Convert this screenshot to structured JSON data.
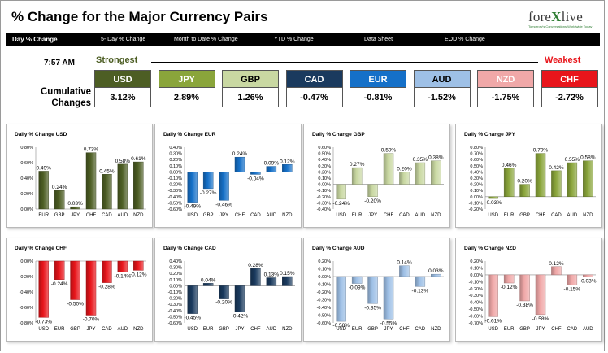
{
  "header": {
    "title": "% Change for the Major Currency Pairs",
    "logo_text_1": "fore",
    "logo_text_x": "X",
    "logo_text_2": "live",
    "logo_tagline": "Tomorrow's Conversations Worldwide Today"
  },
  "nav": {
    "items": [
      {
        "label": "Day % Change"
      },
      {
        "label": "5- Day % Change"
      },
      {
        "label": "Month to Date % Change"
      },
      {
        "label": "YTD % Change"
      },
      {
        "label": "Data Sheet"
      },
      {
        "label": "EOD % Change"
      }
    ]
  },
  "time": "7:57 AM",
  "strongest_label": "Strongest",
  "weakest_label": "Weakest",
  "cumulative_label_1": "Cumulative",
  "cumulative_label_2": "Changes",
  "rankings": [
    {
      "currency": "USD",
      "value": "3.12%",
      "color": "#4d5e24",
      "text_color": "#ffffff"
    },
    {
      "currency": "JPY",
      "value": "2.89%",
      "color": "#8aa53b",
      "text_color": "#ffffff"
    },
    {
      "currency": "GBP",
      "value": "1.26%",
      "color": "#c9d8a2",
      "text_color": "#000000"
    },
    {
      "currency": "CAD",
      "value": "-0.47%",
      "color": "#1a3a5e",
      "text_color": "#ffffff"
    },
    {
      "currency": "EUR",
      "value": "-0.81%",
      "color": "#1570c8",
      "text_color": "#ffffff"
    },
    {
      "currency": "AUD",
      "value": "-1.52%",
      "color": "#9ec0e6",
      "text_color": "#000000"
    },
    {
      "currency": "NZD",
      "value": "-1.75%",
      "color": "#f0a8a8",
      "text_color": "#ffffff"
    },
    {
      "currency": "CHF",
      "value": "-2.72%",
      "color": "#e8151b",
      "text_color": "#ffffff"
    }
  ],
  "chart_data": [
    {
      "type": "bar",
      "title": "Daily % Change USD",
      "categories": [
        "EUR",
        "GBP",
        "JPY",
        "CHF",
        "CAD",
        "AUD",
        "NZD"
      ],
      "values": [
        0.49,
        0.24,
        0.03,
        0.73,
        0.45,
        0.58,
        0.61
      ],
      "labels": [
        "0.49%",
        "0.24%",
        "0.03%",
        "0.73%",
        "0.45%",
        "0.58%",
        "0.61%"
      ],
      "ylim": [
        0,
        0.8
      ],
      "yticks": [
        "0.00%",
        "0.20%",
        "0.40%",
        "0.60%",
        "0.80%"
      ],
      "color": "#4d5e24"
    },
    {
      "type": "bar",
      "title": "Daily % Change EUR",
      "categories": [
        "USD",
        "GBP",
        "JPY",
        "CHF",
        "CAD",
        "AUD",
        "NZD"
      ],
      "values": [
        -0.49,
        -0.27,
        -0.46,
        0.24,
        -0.04,
        0.09,
        0.12
      ],
      "labels": [
        "-0.49%",
        "-0.27%",
        "-0.46%",
        "0.24%",
        "-0.04%",
        "0.09%",
        "0.12%"
      ],
      "ylim": [
        -0.6,
        0.4
      ],
      "yticks": [
        "-0.60%",
        "-0.50%",
        "-0.40%",
        "-0.30%",
        "-0.20%",
        "-0.10%",
        "0.00%",
        "0.10%",
        "0.20%",
        "0.30%",
        "0.40%"
      ],
      "color": "#1570c8"
    },
    {
      "type": "bar",
      "title": "Daily % Change GBP",
      "categories": [
        "USD",
        "EUR",
        "JPY",
        "CHF",
        "CAD",
        "AUD",
        "NZD"
      ],
      "values": [
        -0.24,
        0.27,
        -0.2,
        0.5,
        0.2,
        0.35,
        0.38
      ],
      "labels": [
        "-0.24%",
        "0.27%",
        "-0.20%",
        "0.50%",
        "0.20%",
        "0.35%",
        "0.38%"
      ],
      "ylim": [
        -0.4,
        0.6
      ],
      "yticks": [
        "-0.40%",
        "-0.30%",
        "-0.20%",
        "-0.10%",
        "0.00%",
        "0.10%",
        "0.20%",
        "0.30%",
        "0.40%",
        "0.50%",
        "0.60%"
      ],
      "color": "#c9d8a2"
    },
    {
      "type": "bar",
      "title": "Daily % Change JPY",
      "categories": [
        "USD",
        "EUR",
        "GBP",
        "CHF",
        "CAD",
        "AUD",
        "NZD"
      ],
      "values": [
        -0.03,
        0.46,
        0.2,
        0.7,
        0.42,
        0.55,
        0.58
      ],
      "labels": [
        "-0.03%",
        "0.46%",
        "0.20%",
        "0.70%",
        "0.42%",
        "0.55%",
        "0.58%"
      ],
      "ylim": [
        -0.2,
        0.8
      ],
      "yticks": [
        "-0.20%",
        "-0.10%",
        "0.00%",
        "0.10%",
        "0.20%",
        "0.30%",
        "0.40%",
        "0.50%",
        "0.60%",
        "0.70%",
        "0.80%"
      ],
      "color": "#8aa53b"
    },
    {
      "type": "bar",
      "title": "Daily % Change CHF",
      "categories": [
        "USD",
        "EUR",
        "GBP",
        "JPY",
        "CAD",
        "AUD",
        "NZD"
      ],
      "values": [
        -0.73,
        -0.24,
        -0.5,
        -0.7,
        -0.28,
        -0.14,
        -0.12
      ],
      "labels": [
        "-0.73%",
        "-0.24%",
        "-0.50%",
        "-0.70%",
        "-0.28%",
        "-0.14%",
        "-0.12%"
      ],
      "ylim": [
        -0.8,
        0
      ],
      "yticks": [
        "-0.80%",
        "-0.60%",
        "-0.40%",
        "-0.20%",
        "0.00%"
      ],
      "color": "#e8151b"
    },
    {
      "type": "bar",
      "title": "Daily % Change CAD",
      "categories": [
        "USD",
        "EUR",
        "GBP",
        "JPY",
        "CHF",
        "AUD",
        "NZD"
      ],
      "values": [
        -0.45,
        0.04,
        -0.2,
        -0.42,
        0.28,
        0.13,
        0.15
      ],
      "labels": [
        "-0.45%",
        "0.04%",
        "-0.20%",
        "-0.42%",
        "0.28%",
        "0.13%",
        "0.15%"
      ],
      "ylim": [
        -0.6,
        0.4
      ],
      "yticks": [
        "-0.60%",
        "-0.50%",
        "-0.40%",
        "-0.30%",
        "-0.20%",
        "-0.10%",
        "0.00%",
        "0.10%",
        "0.20%",
        "0.30%",
        "0.40%"
      ],
      "color": "#1a3a5e"
    },
    {
      "type": "bar",
      "title": "Daily % Change AUD",
      "categories": [
        "USD",
        "EUR",
        "GBP",
        "JPY",
        "CHF",
        "CAD",
        "NZD"
      ],
      "values": [
        -0.58,
        -0.09,
        -0.35,
        -0.55,
        0.14,
        -0.13,
        0.03
      ],
      "labels": [
        "-0.58%",
        "-0.09%",
        "-0.35%",
        "-0.55%",
        "0.14%",
        "-0.13%",
        "0.03%"
      ],
      "ylim": [
        -0.6,
        0.2
      ],
      "yticks": [
        "-0.60%",
        "-0.50%",
        "-0.40%",
        "-0.30%",
        "-0.20%",
        "-0.10%",
        "0.00%",
        "0.10%",
        "0.20%"
      ],
      "color": "#9ec0e6"
    },
    {
      "type": "bar",
      "title": "Daily % Change NZD",
      "categories": [
        "USD",
        "EUR",
        "GBP",
        "JPY",
        "CHF",
        "CAD",
        "AUD"
      ],
      "values": [
        -0.61,
        -0.12,
        -0.38,
        -0.58,
        0.12,
        -0.15,
        -0.03
      ],
      "labels": [
        "-0.61%",
        "-0.12%",
        "-0.38%",
        "-0.58%",
        "0.12%",
        "-0.15%",
        "-0.03%"
      ],
      "ylim": [
        -0.7,
        0.2
      ],
      "yticks": [
        "-0.70%",
        "-0.60%",
        "-0.50%",
        "-0.40%",
        "-0.30%",
        "-0.20%",
        "-0.10%",
        "0.00%",
        "0.10%",
        "0.20%"
      ],
      "color": "#f0a8a8"
    }
  ]
}
